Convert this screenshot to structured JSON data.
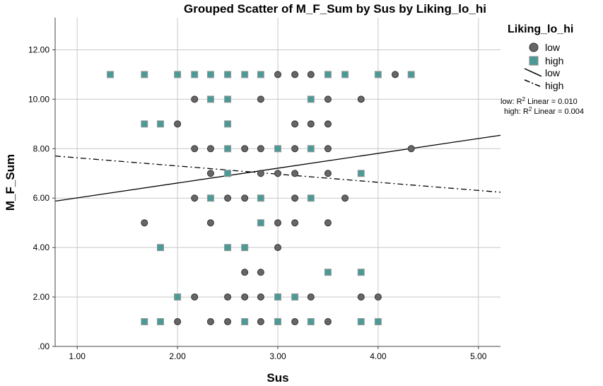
{
  "chart_data": {
    "type": "scatter",
    "title": "Grouped Scatter of M_F_Sum by Sus by Liking_lo_hi",
    "xlabel": "Sus",
    "ylabel": "M_F_Sum",
    "xlim": [
      0.78,
      5.22
    ],
    "ylim": [
      0,
      13.3
    ],
    "x_ticks": [
      "1.00",
      "2.00",
      "3.00",
      "4.00",
      "5.00"
    ],
    "x_tick_values": [
      1,
      2,
      3,
      4,
      5
    ],
    "y_ticks": [
      ".00",
      "2.00",
      "4.00",
      "6.00",
      "8.00",
      "10.00",
      "12.00"
    ],
    "y_tick_values": [
      0,
      2,
      4,
      6,
      8,
      10,
      12
    ],
    "grid": true,
    "legend": {
      "title": "Liking_lo_hi",
      "placement": "right",
      "marker_labels": [
        "low",
        "high"
      ],
      "line_labels": [
        "low",
        "high"
      ]
    },
    "r_squared": [
      {
        "prefix": "low: R",
        "sup": "2",
        "suffix": " Linear = 0.010"
      },
      {
        "prefix": "high: R",
        "sup": "2",
        "suffix": " Linear = 0.004"
      }
    ],
    "series": [
      {
        "name": "low",
        "marker": "circle",
        "color": "#666666",
        "points": [
          [
            2.33,
            11
          ],
          [
            2.5,
            11
          ],
          [
            3.0,
            11
          ],
          [
            3.17,
            11
          ],
          [
            3.33,
            11
          ],
          [
            4.17,
            11
          ],
          [
            2.17,
            10
          ],
          [
            2.83,
            10
          ],
          [
            3.5,
            10
          ],
          [
            3.83,
            10
          ],
          [
            2.0,
            9
          ],
          [
            3.17,
            9
          ],
          [
            3.33,
            9
          ],
          [
            3.5,
            9
          ],
          [
            2.17,
            8
          ],
          [
            2.33,
            8
          ],
          [
            2.67,
            8
          ],
          [
            2.83,
            8
          ],
          [
            3.17,
            8
          ],
          [
            3.5,
            8
          ],
          [
            4.33,
            8
          ],
          [
            2.33,
            7
          ],
          [
            2.83,
            7
          ],
          [
            3.0,
            7
          ],
          [
            3.17,
            7
          ],
          [
            3.5,
            7
          ],
          [
            2.17,
            6
          ],
          [
            2.5,
            6
          ],
          [
            2.67,
            6
          ],
          [
            3.17,
            6
          ],
          [
            3.67,
            6
          ],
          [
            1.67,
            5
          ],
          [
            2.33,
            5
          ],
          [
            3.0,
            5
          ],
          [
            3.17,
            5
          ],
          [
            3.5,
            5
          ],
          [
            3.0,
            4
          ],
          [
            2.67,
            3
          ],
          [
            2.83,
            3
          ],
          [
            2.17,
            2
          ],
          [
            2.5,
            2
          ],
          [
            2.67,
            2
          ],
          [
            2.83,
            2
          ],
          [
            3.0,
            2
          ],
          [
            3.33,
            2
          ],
          [
            3.83,
            2
          ],
          [
            4.0,
            2
          ],
          [
            2.0,
            1
          ],
          [
            2.33,
            1
          ],
          [
            2.5,
            1
          ],
          [
            2.67,
            1
          ],
          [
            2.83,
            1
          ],
          [
            3.0,
            1
          ],
          [
            3.17,
            1
          ],
          [
            3.5,
            1
          ]
        ],
        "fit": {
          "slope": 0.6,
          "intercept": 5.41
        }
      },
      {
        "name": "high",
        "marker": "square",
        "color": "#4a9a96",
        "points": [
          [
            1.33,
            11
          ],
          [
            1.67,
            11
          ],
          [
            2.0,
            11
          ],
          [
            2.17,
            11
          ],
          [
            2.33,
            11
          ],
          [
            2.5,
            11
          ],
          [
            2.67,
            11
          ],
          [
            2.83,
            11
          ],
          [
            3.5,
            11
          ],
          [
            3.67,
            11
          ],
          [
            4.0,
            11
          ],
          [
            4.33,
            11
          ],
          [
            2.33,
            10
          ],
          [
            2.5,
            10
          ],
          [
            3.33,
            10
          ],
          [
            1.67,
            9
          ],
          [
            1.83,
            9
          ],
          [
            2.5,
            9
          ],
          [
            2.5,
            8
          ],
          [
            3.0,
            8
          ],
          [
            3.33,
            8
          ],
          [
            2.5,
            7
          ],
          [
            3.83,
            7
          ],
          [
            2.33,
            6
          ],
          [
            2.83,
            6
          ],
          [
            3.33,
            6
          ],
          [
            2.83,
            5
          ],
          [
            1.83,
            4
          ],
          [
            2.5,
            4
          ],
          [
            2.67,
            4
          ],
          [
            3.5,
            3
          ],
          [
            3.83,
            3
          ],
          [
            2.0,
            2
          ],
          [
            3.0,
            2
          ],
          [
            3.17,
            2
          ],
          [
            1.67,
            1
          ],
          [
            1.83,
            1
          ],
          [
            2.67,
            1
          ],
          [
            3.0,
            1
          ],
          [
            3.33,
            1
          ],
          [
            3.83,
            1
          ],
          [
            4.0,
            1
          ]
        ],
        "fit": {
          "slope": -0.33,
          "intercept": 7.96
        }
      }
    ]
  }
}
